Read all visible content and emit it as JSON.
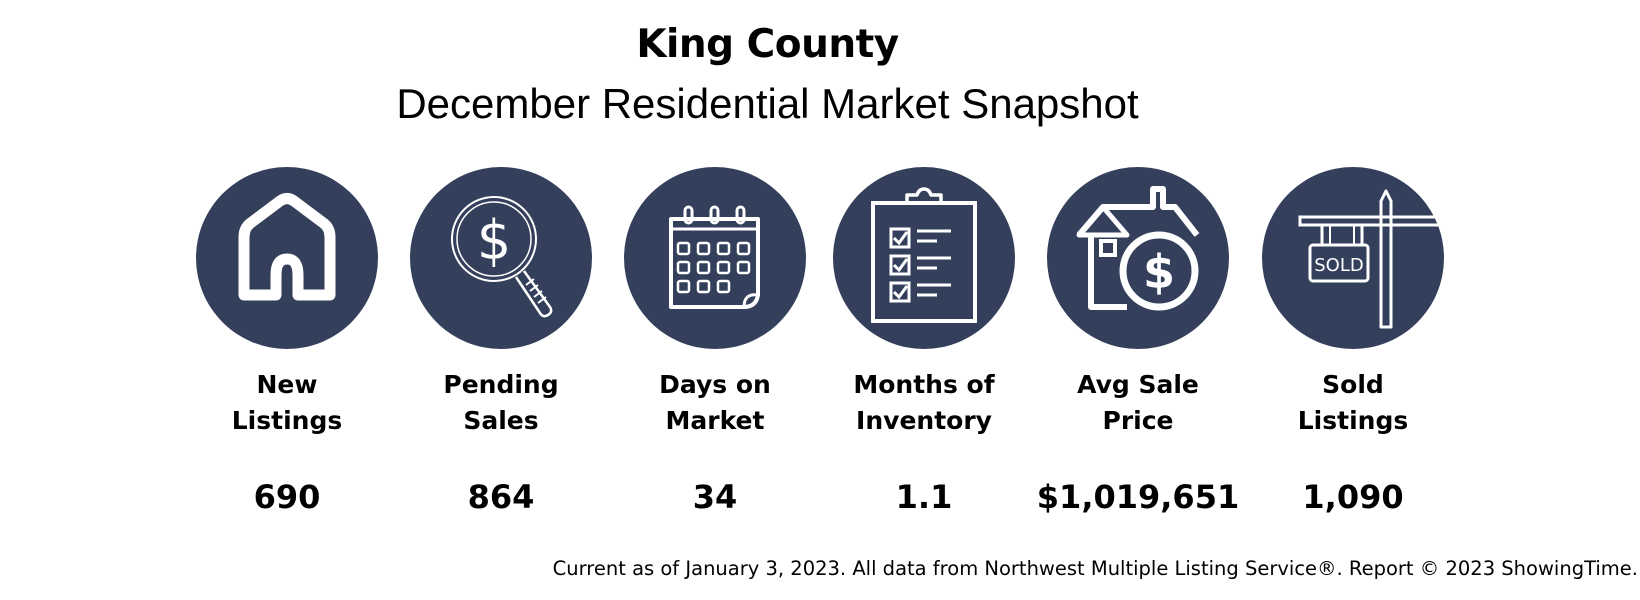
{
  "header": {
    "title": "King County",
    "subtitle": "December Residential Market Snapshot"
  },
  "stats": [
    {
      "icon": "house-icon",
      "label_line1": "New",
      "label_line2": "Listings",
      "value": "690"
    },
    {
      "icon": "dollar-magnifier-icon",
      "label_line1": "Pending",
      "label_line2": "Sales",
      "value": "864"
    },
    {
      "icon": "calendar-icon",
      "label_line1": "Days on",
      "label_line2": "Market",
      "value": "34"
    },
    {
      "icon": "clipboard-checklist-icon",
      "label_line1": "Months of",
      "label_line2": "Inventory",
      "value": "1.1"
    },
    {
      "icon": "house-dollar-icon",
      "label_line1": "Avg Sale",
      "label_line2": "Price",
      "value": "$1,019,651"
    },
    {
      "icon": "sold-sign-icon",
      "label_line1": "Sold",
      "label_line2": "Listings",
      "value": "1,090",
      "sign_text": "SOLD"
    }
  ],
  "footer": {
    "note": "Current as of January 3, 2023. All data from Northwest Multiple Listing Service®. Report © 2023 ShowingTime."
  },
  "colors": {
    "circle": "#343f5c",
    "icon": "#ffffff",
    "text": "#000000"
  }
}
